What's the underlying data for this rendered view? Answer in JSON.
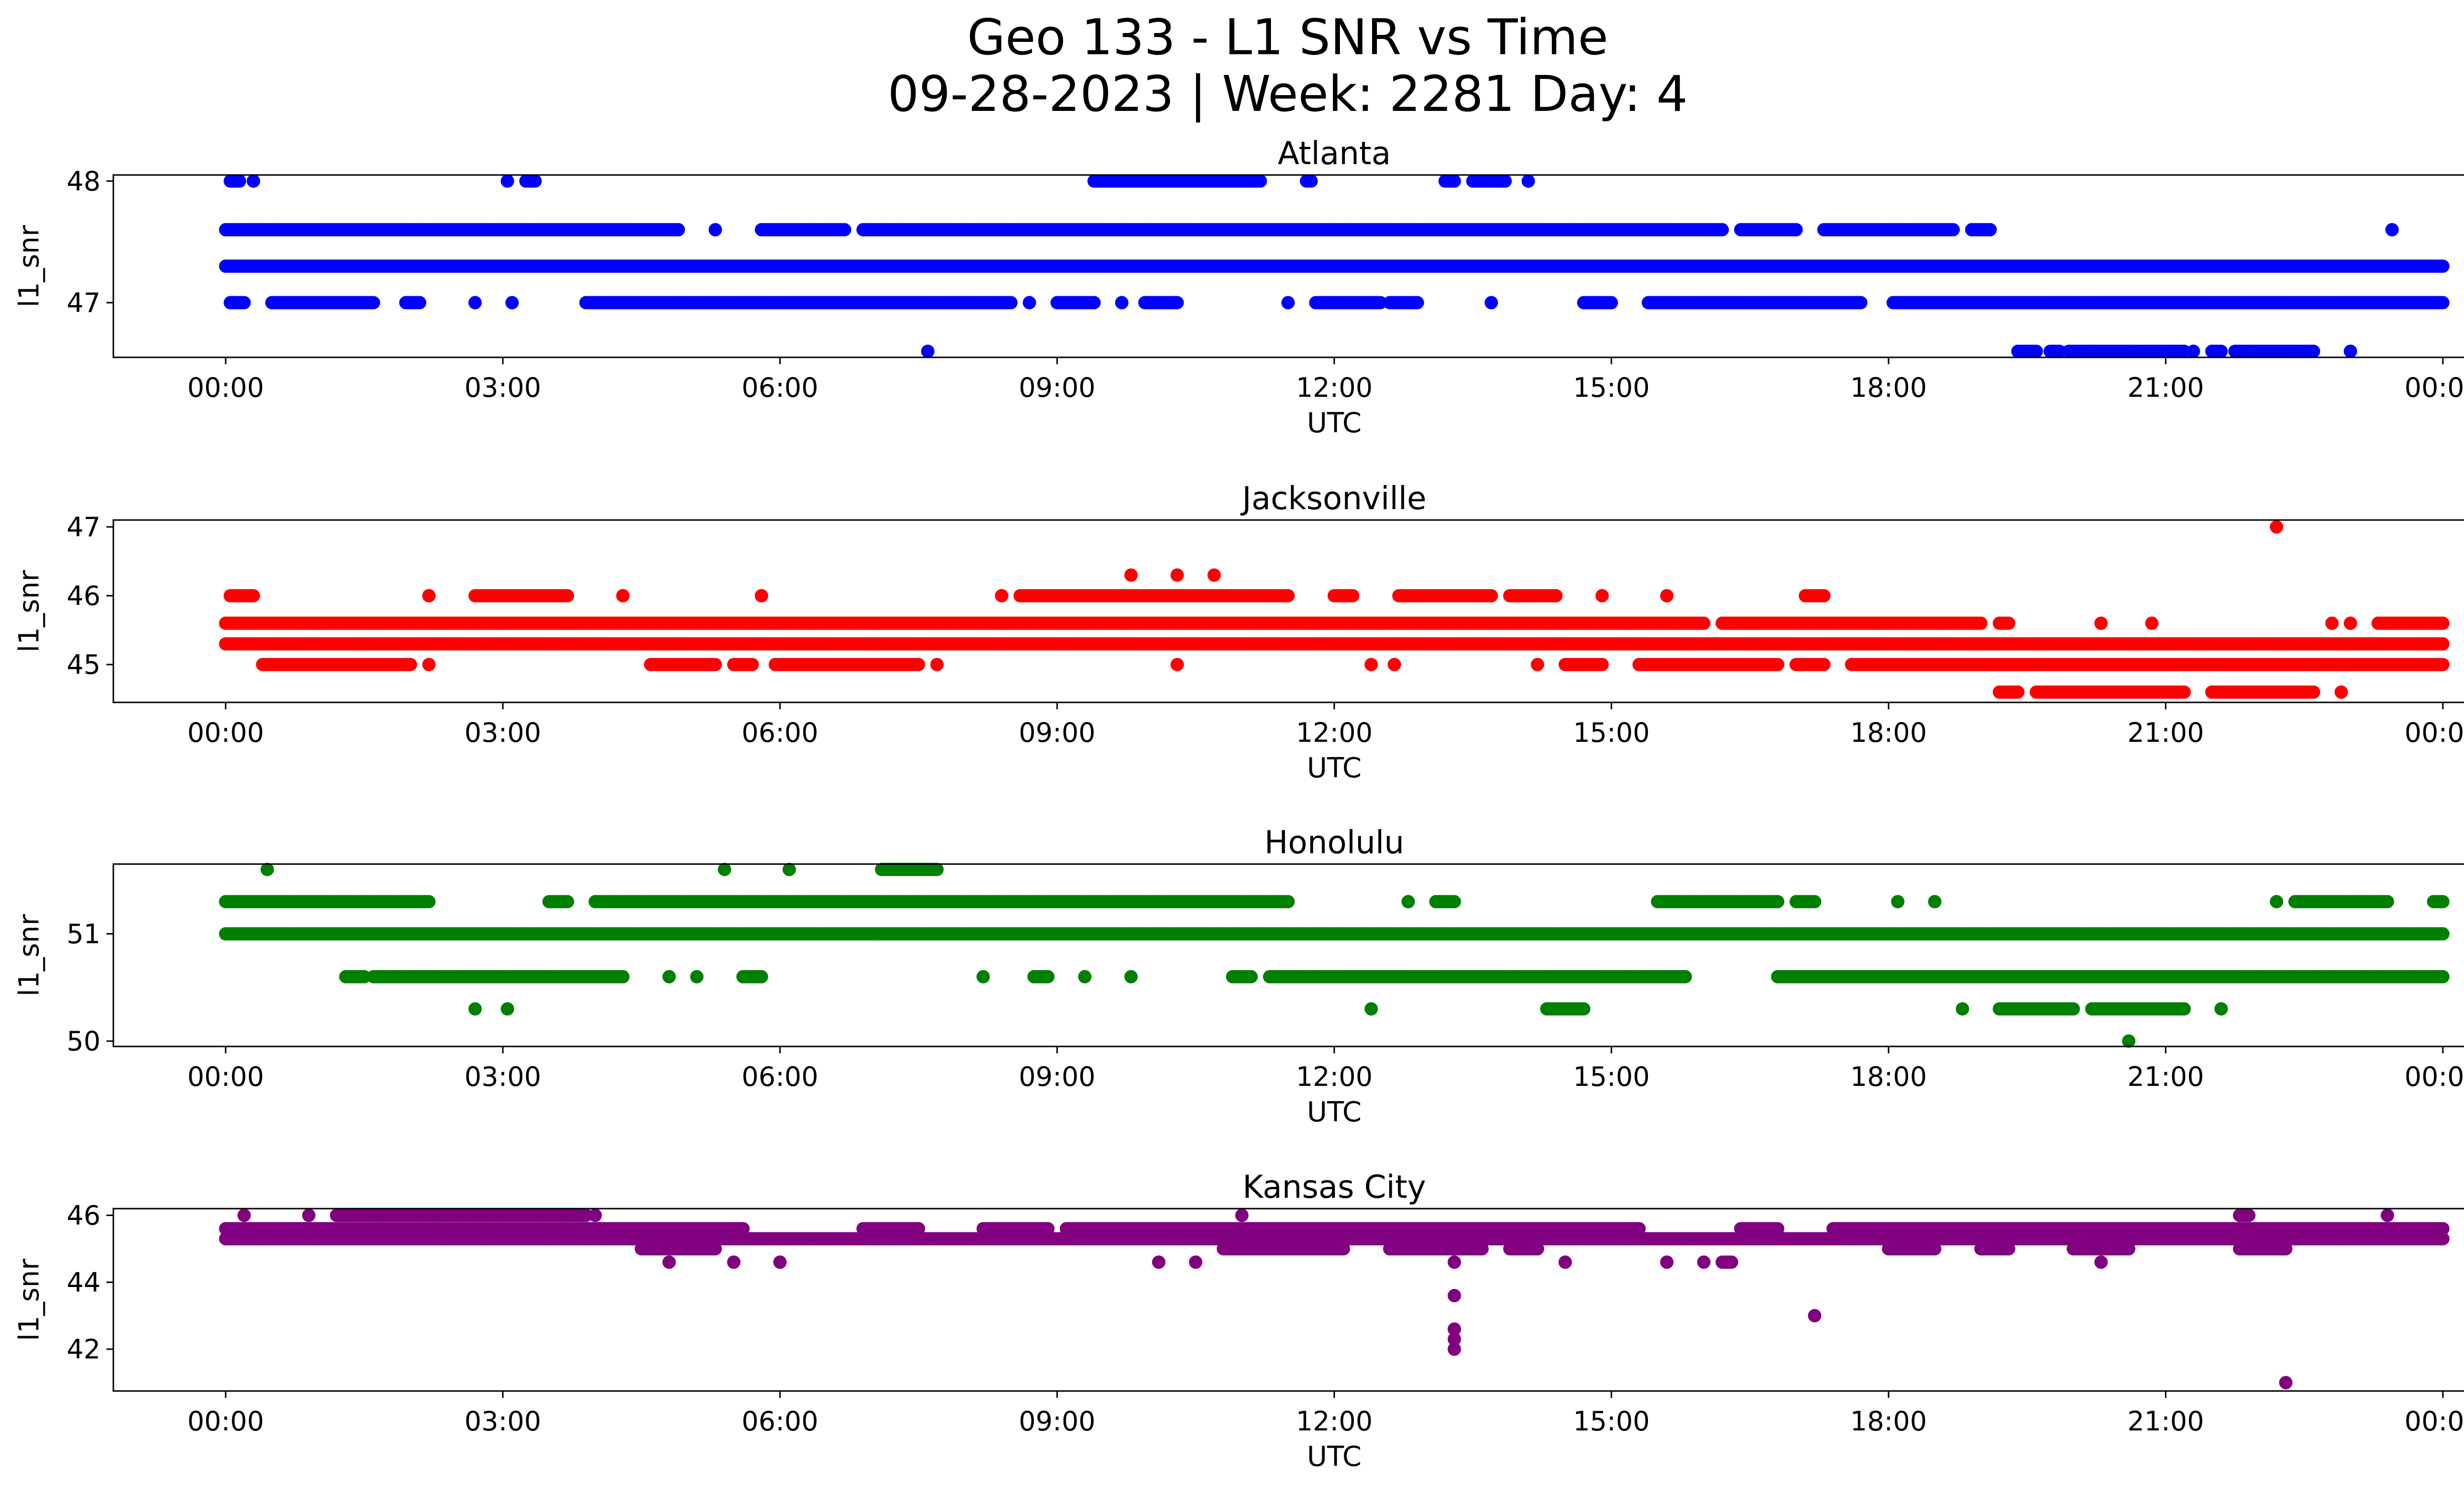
{
  "figure": {
    "title_line1": "Geo 133 - L1 SNR vs Time",
    "title_line2": "09-28-2023 | Week: 2281 Day: 4"
  },
  "chart_data": [
    {
      "type": "scatter",
      "title": "Atlanta",
      "xlabel": "UTC",
      "ylabel": "l1_snr",
      "color": "#0000ff",
      "xlim": [
        "00:00",
        "24:00"
      ],
      "ylim": [
        46.55,
        48.05
      ],
      "xticks": [
        "00:00",
        "03:00",
        "06:00",
        "09:00",
        "12:00",
        "15:00",
        "18:00",
        "21:00",
        "00:00"
      ],
      "yticks": [
        "47",
        "48"
      ],
      "series": [
        {
          "y": 47.3,
          "segments": [
            [
              0.0,
              24.0
            ]
          ]
        },
        {
          "y": 47.6,
          "segments": [
            [
              0.0,
              4.9
            ],
            [
              5.3,
              5.3
            ],
            [
              5.8,
              6.7
            ],
            [
              6.9,
              16.2
            ],
            [
              16.4,
              17.0
            ],
            [
              17.3,
              18.7
            ],
            [
              18.9,
              19.1
            ]
          ]
        },
        {
          "y": 47.0,
          "segments": [
            [
              0.05,
              0.2
            ],
            [
              0.5,
              1.6
            ],
            [
              1.95,
              2.1
            ],
            [
              2.7,
              2.7
            ],
            [
              3.1,
              3.1
            ],
            [
              3.9,
              8.5
            ],
            [
              8.7,
              8.7
            ],
            [
              9.0,
              9.4
            ],
            [
              9.7,
              9.7
            ],
            [
              9.95,
              10.3
            ],
            [
              11.5,
              11.5
            ],
            [
              11.8,
              12.5
            ],
            [
              12.6,
              12.9
            ],
            [
              13.7,
              13.7
            ],
            [
              14.7,
              15.0
            ],
            [
              15.4,
              17.7
            ],
            [
              18.05,
              24.0
            ]
          ]
        },
        {
          "y": 48.0,
          "segments": [
            [
              0.05,
              0.15
            ],
            [
              0.3,
              0.3
            ],
            [
              3.05,
              3.05
            ],
            [
              3.25,
              3.35
            ],
            [
              9.4,
              11.2
            ],
            [
              11.7,
              11.75
            ],
            [
              13.2,
              13.3
            ],
            [
              13.5,
              13.85
            ],
            [
              14.1,
              14.1
            ]
          ]
        },
        {
          "y": 46.6,
          "segments": [
            [
              7.6,
              7.6
            ],
            [
              19.4,
              19.6
            ],
            [
              19.75,
              19.85
            ],
            [
              19.95,
              21.2
            ],
            [
              21.3,
              21.3
            ],
            [
              21.5,
              21.6
            ],
            [
              21.75,
              22.6
            ],
            [
              23.0,
              23.0
            ]
          ]
        },
        {
          "y": 47.6,
          "segments": [
            [
              23.45,
              23.45
            ]
          ]
        }
      ]
    },
    {
      "type": "scatter",
      "title": "Jacksonville",
      "xlabel": "UTC",
      "ylabel": "l1_snr",
      "color": "#ff0000",
      "xlim": [
        "00:00",
        "24:00"
      ],
      "ylim": [
        44.45,
        47.1
      ],
      "xticks": [
        "00:00",
        "03:00",
        "06:00",
        "09:00",
        "12:00",
        "15:00",
        "18:00",
        "21:00",
        "00:00"
      ],
      "yticks": [
        "45",
        "46",
        "47"
      ],
      "series": [
        {
          "y": 45.3,
          "segments": [
            [
              0.0,
              24.0
            ]
          ]
        },
        {
          "y": 45.6,
          "segments": [
            [
              0.0,
              16.0
            ],
            [
              16.2,
              19.0
            ],
            [
              19.2,
              19.3
            ],
            [
              20.3,
              20.3
            ],
            [
              20.85,
              20.85
            ],
            [
              22.8,
              22.8
            ],
            [
              23.0,
              23.0
            ],
            [
              23.3,
              24.0
            ]
          ]
        },
        {
          "y": 45.0,
          "segments": [
            [
              0.4,
              2.0
            ],
            [
              2.2,
              2.2
            ],
            [
              4.6,
              5.3
            ],
            [
              5.5,
              5.7
            ],
            [
              5.95,
              7.5
            ],
            [
              7.7,
              7.7
            ],
            [
              10.3,
              10.3
            ],
            [
              12.4,
              12.4
            ],
            [
              12.65,
              12.65
            ],
            [
              14.2,
              14.2
            ],
            [
              14.5,
              14.9
            ],
            [
              15.3,
              16.8
            ],
            [
              17.0,
              17.3
            ],
            [
              17.6,
              24.0
            ]
          ]
        },
        {
          "y": 46.0,
          "segments": [
            [
              0.05,
              0.3
            ],
            [
              2.2,
              2.2
            ],
            [
              2.7,
              3.7
            ],
            [
              4.3,
              4.3
            ],
            [
              5.8,
              5.8
            ],
            [
              8.4,
              8.4
            ],
            [
              8.6,
              11.5
            ],
            [
              12.0,
              12.2
            ],
            [
              12.7,
              13.7
            ],
            [
              13.9,
              14.4
            ],
            [
              14.9,
              14.9
            ],
            [
              15.6,
              15.6
            ],
            [
              17.1,
              17.3
            ]
          ]
        },
        {
          "y": 46.3,
          "segments": [
            [
              9.8,
              9.8
            ],
            [
              10.3,
              10.3
            ],
            [
              10.7,
              10.7
            ]
          ]
        },
        {
          "y": 44.6,
          "segments": [
            [
              19.2,
              19.4
            ],
            [
              19.6,
              21.2
            ],
            [
              21.5,
              22.6
            ],
            [
              22.9,
              22.9
            ]
          ]
        },
        {
          "y": 47.0,
          "segments": [
            [
              22.2,
              22.2
            ]
          ]
        }
      ]
    },
    {
      "type": "scatter",
      "title": "Honolulu",
      "xlabel": "UTC",
      "ylabel": "l1_snr",
      "color": "#008000",
      "xlim": [
        "00:00",
        "24:00"
      ],
      "ylim": [
        49.95,
        51.65
      ],
      "xticks": [
        "00:00",
        "03:00",
        "06:00",
        "09:00",
        "12:00",
        "15:00",
        "18:00",
        "21:00",
        "00:00"
      ],
      "yticks": [
        "50",
        "51"
      ],
      "series": [
        {
          "y": 51.0,
          "segments": [
            [
              0.0,
              24.0
            ]
          ]
        },
        {
          "y": 51.3,
          "segments": [
            [
              0.0,
              2.2
            ],
            [
              3.5,
              3.7
            ],
            [
              4.0,
              11.5
            ],
            [
              12.8,
              12.8
            ],
            [
              13.1,
              13.3
            ],
            [
              15.5,
              16.8
            ],
            [
              17.0,
              17.2
            ],
            [
              18.1,
              18.1
            ],
            [
              18.5,
              18.5
            ],
            [
              22.2,
              22.2
            ],
            [
              22.4,
              23.4
            ],
            [
              23.9,
              24.0
            ]
          ]
        },
        {
          "y": 50.6,
          "segments": [
            [
              1.3,
              1.5
            ],
            [
              1.6,
              4.3
            ],
            [
              4.8,
              4.8
            ],
            [
              5.1,
              5.1
            ],
            [
              5.6,
              5.8
            ],
            [
              8.2,
              8.2
            ],
            [
              8.75,
              8.9
            ],
            [
              9.3,
              9.3
            ],
            [
              9.8,
              9.8
            ],
            [
              10.9,
              11.1
            ],
            [
              11.3,
              15.8
            ],
            [
              16.8,
              24.0
            ]
          ]
        },
        {
          "y": 51.6,
          "segments": [
            [
              0.45,
              0.45
            ],
            [
              5.4,
              5.4
            ],
            [
              6.1,
              6.1
            ],
            [
              7.1,
              7.7
            ]
          ]
        },
        {
          "y": 50.3,
          "segments": [
            [
              2.7,
              2.7
            ],
            [
              3.05,
              3.05
            ],
            [
              12.4,
              12.4
            ],
            [
              14.3,
              14.7
            ],
            [
              18.8,
              18.8
            ],
            [
              19.2,
              20.0
            ],
            [
              20.2,
              21.2
            ],
            [
              21.6,
              21.6
            ]
          ]
        },
        {
          "y": 50.0,
          "segments": [
            [
              20.6,
              20.6
            ]
          ]
        }
      ]
    },
    {
      "type": "scatter",
      "title": "Kansas City",
      "xlabel": "UTC",
      "ylabel": "l1_snr",
      "color": "#800080",
      "xlim": [
        "00:00",
        "24:00"
      ],
      "ylim": [
        40.75,
        46.2
      ],
      "xticks": [
        "00:00",
        "03:00",
        "06:00",
        "09:00",
        "12:00",
        "15:00",
        "18:00",
        "21:00",
        "00:00"
      ],
      "yticks": [
        "42",
        "44",
        "46"
      ],
      "series": [
        {
          "y": 45.3,
          "segments": [
            [
              0.0,
              24.0
            ]
          ]
        },
        {
          "y": 45.6,
          "segments": [
            [
              0.0,
              5.6
            ],
            [
              6.9,
              7.5
            ],
            [
              8.2,
              8.9
            ],
            [
              9.1,
              15.3
            ],
            [
              16.4,
              16.8
            ],
            [
              17.4,
              24.0
            ]
          ]
        },
        {
          "y": 46.0,
          "segments": [
            [
              0.2,
              0.2
            ],
            [
              0.9,
              0.9
            ],
            [
              1.2,
              3.9
            ],
            [
              4.0,
              4.0
            ],
            [
              11.0,
              11.0
            ],
            [
              21.8,
              21.9
            ],
            [
              23.4,
              23.4
            ]
          ]
        },
        {
          "y": 45.0,
          "segments": [
            [
              4.5,
              5.3
            ],
            [
              10.8,
              12.1
            ],
            [
              12.6,
              13.6
            ],
            [
              13.9,
              14.2
            ],
            [
              18.0,
              18.5
            ],
            [
              19.0,
              19.3
            ],
            [
              20.0,
              20.6
            ],
            [
              21.8,
              22.3
            ]
          ]
        },
        {
          "y": 44.6,
          "segments": [
            [
              4.8,
              4.8
            ],
            [
              5.5,
              5.5
            ],
            [
              6.0,
              6.0
            ],
            [
              10.1,
              10.1
            ],
            [
              10.5,
              10.5
            ],
            [
              13.3,
              13.3
            ],
            [
              14.5,
              14.5
            ],
            [
              15.6,
              15.6
            ],
            [
              16.0,
              16.0
            ],
            [
              16.2,
              16.3
            ],
            [
              20.3,
              20.3
            ]
          ]
        },
        {
          "y": 43.6,
          "segments": [
            [
              13.3,
              13.3
            ]
          ]
        },
        {
          "y": 42.6,
          "segments": [
            [
              13.3,
              13.3
            ]
          ]
        },
        {
          "y": 42.3,
          "segments": [
            [
              13.3,
              13.3
            ]
          ]
        },
        {
          "y": 42.0,
          "segments": [
            [
              13.3,
              13.3
            ]
          ]
        },
        {
          "y": 43.0,
          "segments": [
            [
              17.2,
              17.2
            ]
          ]
        },
        {
          "y": 41.0,
          "segments": [
            [
              22.3,
              22.3
            ]
          ]
        }
      ]
    }
  ]
}
